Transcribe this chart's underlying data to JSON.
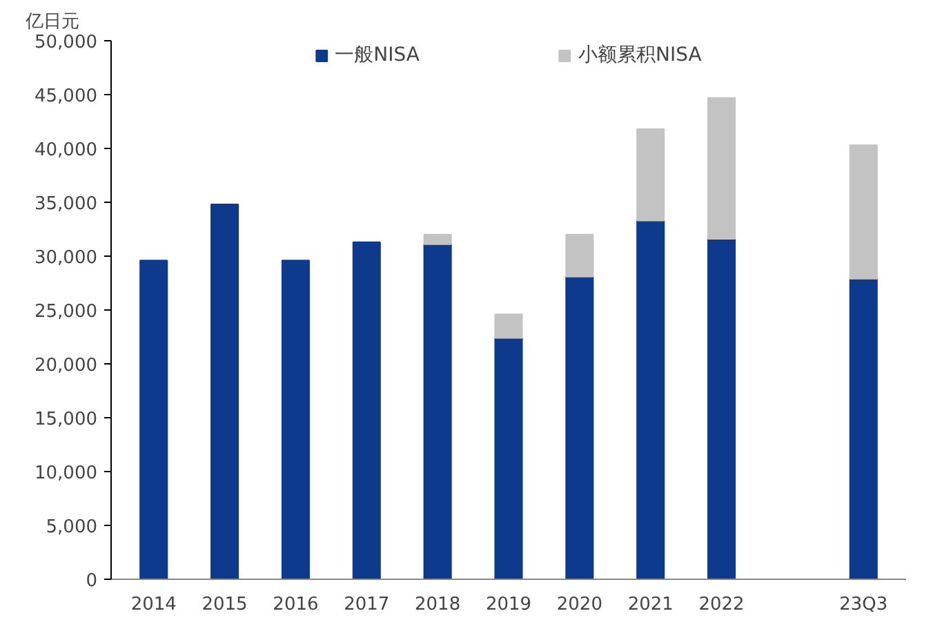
{
  "chart_data": {
    "type": "bar",
    "stacked": true,
    "ylabel": "亿日元",
    "categories": [
      "2014",
      "2015",
      "2016",
      "2017",
      "2018",
      "2019",
      "2020",
      "2021",
      "2022",
      null,
      "23Q3"
    ],
    "series": [
      {
        "name": "一般NISA",
        "color": "#0d3a8c",
        "values": [
          29600,
          34800,
          29600,
          31300,
          31100,
          22400,
          28100,
          33300,
          31600,
          null,
          27900
        ]
      },
      {
        "name": "小额累积NISA",
        "color": "#c3c3c3",
        "values": [
          null,
          null,
          null,
          null,
          900,
          2200,
          3900,
          8500,
          13100,
          null,
          12400
        ]
      }
    ],
    "ylim": [
      0,
      50000
    ],
    "yticks": [
      {
        "value": 0,
        "label": "0"
      },
      {
        "value": 5000,
        "label": "5,000"
      },
      {
        "value": 10000,
        "label": "10,000"
      },
      {
        "value": 15000,
        "label": "15,000"
      },
      {
        "value": 20000,
        "label": "20,000"
      },
      {
        "value": 25000,
        "label": "25,000"
      },
      {
        "value": 30000,
        "label": "30,000"
      },
      {
        "value": 35000,
        "label": "35,000"
      },
      {
        "value": 40000,
        "label": "40,000"
      },
      {
        "value": 45000,
        "label": "45,000"
      },
      {
        "value": 50000,
        "label": "50,000"
      }
    ],
    "grid": false,
    "legend": "top"
  }
}
